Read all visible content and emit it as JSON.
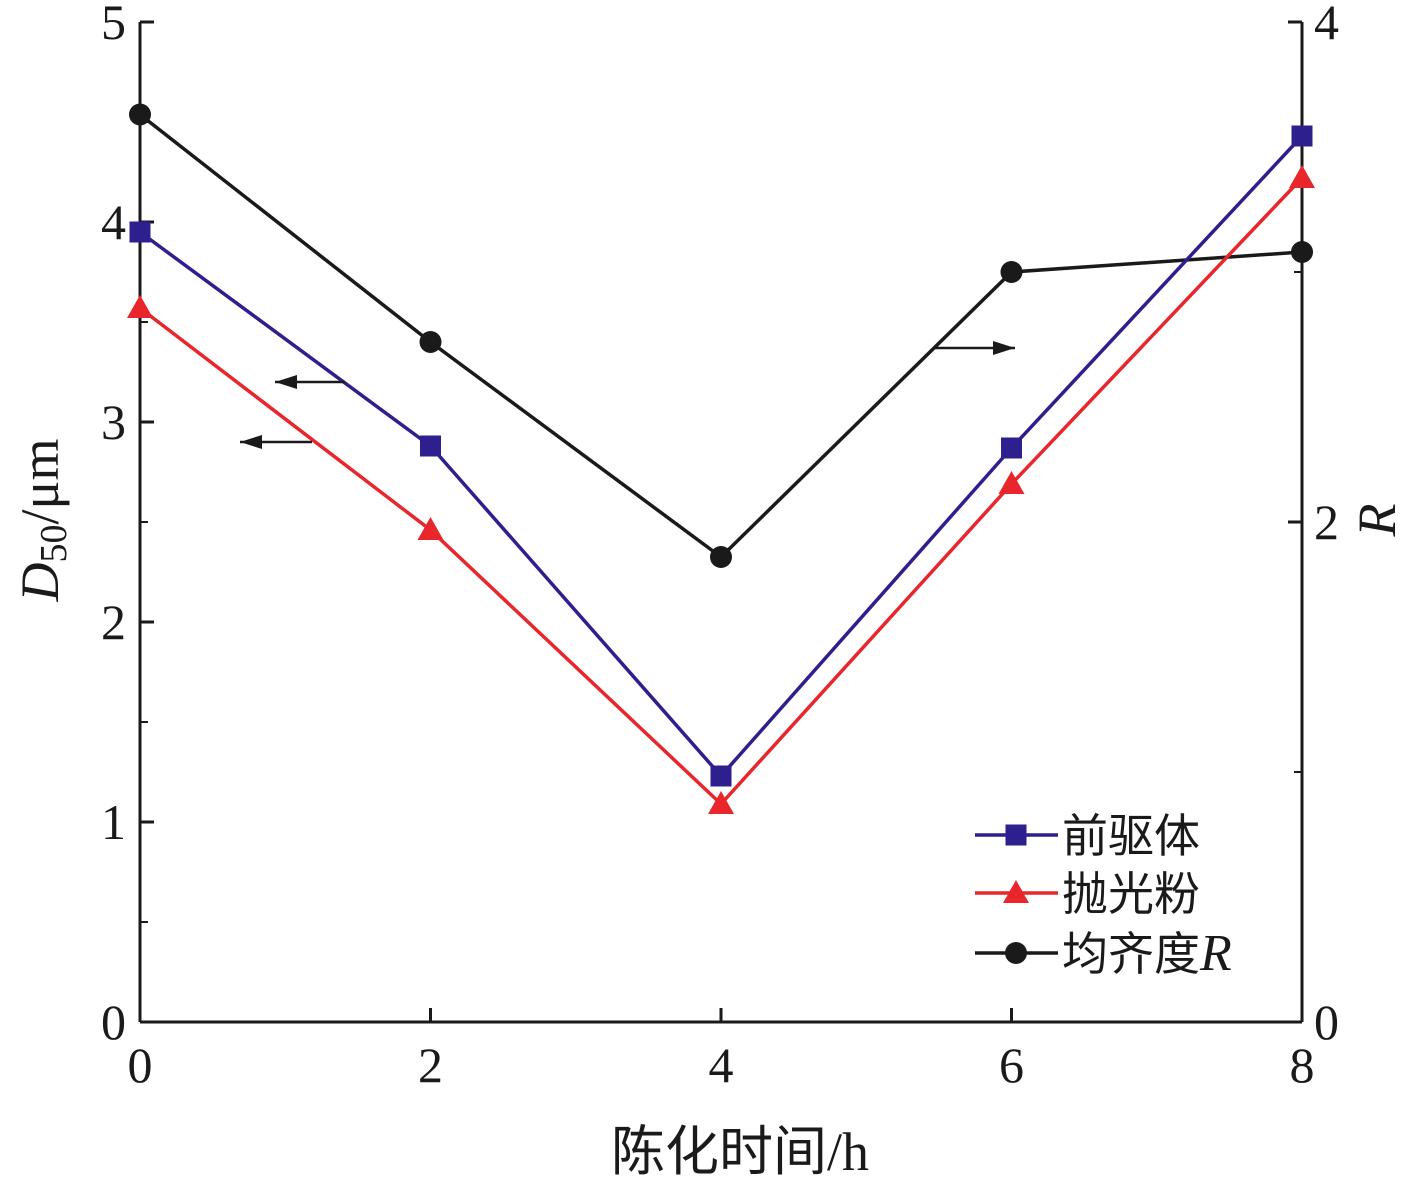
{
  "chart_data": {
    "type": "line",
    "x": [
      0,
      2,
      4,
      6,
      8
    ],
    "xlabel": "陈化时间/h",
    "ylabel_left": {
      "main": "D",
      "sub": "50",
      "rest": "/μm"
    },
    "ylabel_right": "R",
    "xlim": [
      0,
      8
    ],
    "ylim_left": [
      0,
      5
    ],
    "ylim_right": [
      0,
      4
    ],
    "xticks": [
      "0",
      "2",
      "4",
      "6",
      "8"
    ],
    "yticks_left": [
      "0",
      "1",
      "2",
      "3",
      "4",
      "5"
    ],
    "yticks_right": [
      "0",
      "2",
      "4"
    ],
    "grid": false,
    "legend_position": "bottom-right",
    "series": [
      {
        "name": "前驱体",
        "axis": "left",
        "color": "#2e1f8f",
        "marker": "square",
        "values": [
          3.95,
          2.88,
          1.23,
          2.87,
          4.43
        ]
      },
      {
        "name": "抛光粉",
        "axis": "left",
        "color": "#e8262b",
        "marker": "triangle",
        "values": [
          3.57,
          2.46,
          1.09,
          2.69,
          4.22
        ]
      },
      {
        "name": "均齐度",
        "name_italic": "R",
        "axis": "right",
        "color": "#1a1a1a",
        "marker": "circle",
        "values": [
          3.63,
          2.72,
          1.86,
          3.0,
          3.08
        ]
      }
    ],
    "annotations": [
      {
        "type": "arrow",
        "direction": "left",
        "series": "前驱体"
      },
      {
        "type": "arrow",
        "direction": "left",
        "series": "抛光粉"
      },
      {
        "type": "arrow",
        "direction": "right",
        "series": "均齐度R"
      }
    ]
  }
}
